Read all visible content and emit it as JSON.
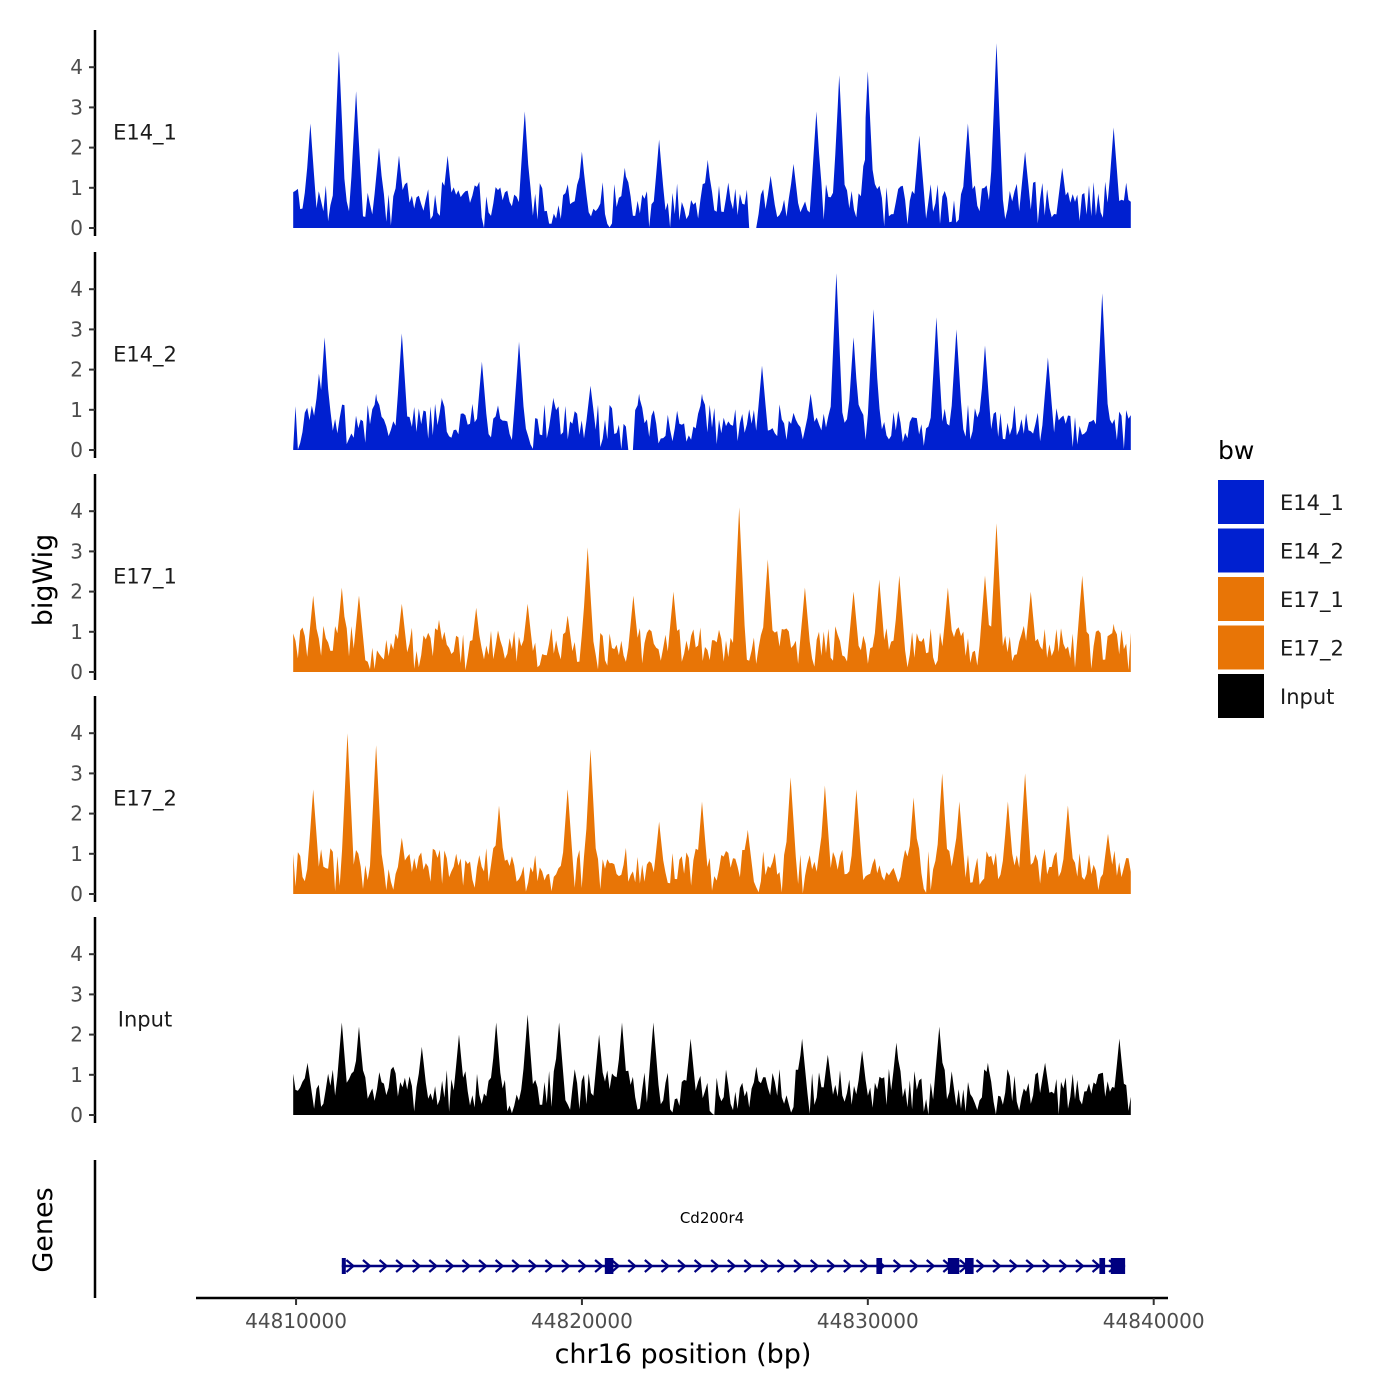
{
  "chart_data": {
    "type": "area",
    "title": "",
    "xlabel": "chr16 position (bp)",
    "ylabel": "bigWig",
    "genes_panel_label": "Genes",
    "xlim": [
      44806500,
      44840500
    ],
    "x_ticks": [
      44810000,
      44820000,
      44830000,
      44840000
    ],
    "x_tick_labels": [
      "44810000",
      "44820000",
      "44830000",
      "44840000"
    ],
    "ylim": [
      0,
      4.9
    ],
    "y_ticks": [
      0,
      1,
      2,
      3,
      4
    ],
    "y_tick_labels": [
      "0",
      "1",
      "2",
      "3",
      "4"
    ],
    "track_range": [
      44809900,
      44839200
    ],
    "legend": {
      "title": "bw",
      "entries": [
        {
          "label": "E14_1",
          "color": "#0020d0"
        },
        {
          "label": "E14_2",
          "color": "#0020d0"
        },
        {
          "label": "E17_1",
          "color": "#e87506"
        },
        {
          "label": "E17_2",
          "color": "#e87506"
        },
        {
          "label": "Input",
          "color": "#000000"
        }
      ]
    },
    "series": [
      {
        "name": "E14_1",
        "color": "#0020d0",
        "peaks": [
          [
            44810500,
            2.6
          ],
          [
            44811500,
            4.4
          ],
          [
            44812100,
            3.4
          ],
          [
            44812900,
            2.0
          ],
          [
            44813600,
            1.8
          ],
          [
            44815300,
            1.8
          ],
          [
            44818000,
            2.9
          ],
          [
            44820000,
            1.9
          ],
          [
            44821500,
            1.5
          ],
          [
            44822700,
            2.2
          ],
          [
            44824400,
            1.7
          ],
          [
            44826600,
            1.3
          ],
          [
            44827400,
            1.6
          ],
          [
            44828200,
            2.9
          ],
          [
            44829000,
            3.8
          ],
          [
            44829900,
            1.7
          ],
          [
            44830000,
            3.9
          ],
          [
            44831800,
            2.3
          ],
          [
            44833500,
            2.6
          ],
          [
            44834500,
            4.6
          ],
          [
            44835500,
            1.9
          ],
          [
            44836800,
            1.5
          ],
          [
            44838600,
            2.5
          ]
        ],
        "gaps": [
          [
            44825800,
            44826100
          ]
        ]
      },
      {
        "name": "E14_2",
        "color": "#0020d0",
        "peaks": [
          [
            44810800,
            1.9
          ],
          [
            44811000,
            2.8
          ],
          [
            44812800,
            1.4
          ],
          [
            44813700,
            2.9
          ],
          [
            44815100,
            1.3
          ],
          [
            44816500,
            2.2
          ],
          [
            44817800,
            2.7
          ],
          [
            44819000,
            1.3
          ],
          [
            44820300,
            1.6
          ],
          [
            44822000,
            1.4
          ],
          [
            44824200,
            1.4
          ],
          [
            44826300,
            2.1
          ],
          [
            44828000,
            1.4
          ],
          [
            44828900,
            4.4
          ],
          [
            44829500,
            2.8
          ],
          [
            44830200,
            3.5
          ],
          [
            44832400,
            3.3
          ],
          [
            44833100,
            3.0
          ],
          [
            44834100,
            2.6
          ],
          [
            44836300,
            2.3
          ],
          [
            44838200,
            3.9
          ]
        ],
        "gaps": [
          [
            44821600,
            44821800
          ]
        ]
      },
      {
        "name": "E17_1",
        "color": "#e87506",
        "peaks": [
          [
            44810600,
            1.9
          ],
          [
            44811600,
            2.1
          ],
          [
            44812200,
            1.9
          ],
          [
            44813700,
            1.7
          ],
          [
            44815000,
            1.3
          ],
          [
            44816300,
            1.6
          ],
          [
            44818100,
            1.7
          ],
          [
            44819500,
            1.4
          ],
          [
            44820200,
            3.1
          ],
          [
            44821800,
            1.9
          ],
          [
            44823200,
            2.0
          ],
          [
            44825500,
            4.1
          ],
          [
            44826500,
            2.8
          ],
          [
            44827800,
            2.1
          ],
          [
            44829500,
            2.0
          ],
          [
            44830400,
            2.3
          ],
          [
            44831100,
            2.4
          ],
          [
            44832800,
            2.1
          ],
          [
            44834100,
            2.4
          ],
          [
            44834500,
            3.7
          ],
          [
            44835700,
            2.0
          ],
          [
            44837500,
            2.4
          ],
          [
            44838600,
            1.2
          ]
        ],
        "gaps": []
      },
      {
        "name": "E17_2",
        "color": "#e87506",
        "peaks": [
          [
            44810600,
            2.6
          ],
          [
            44811800,
            4.0
          ],
          [
            44812800,
            3.7
          ],
          [
            44813700,
            1.4
          ],
          [
            44815600,
            1.0
          ],
          [
            44817100,
            2.2
          ],
          [
            44819500,
            2.6
          ],
          [
            44820300,
            3.6
          ],
          [
            44822700,
            1.8
          ],
          [
            44824200,
            2.3
          ],
          [
            44825800,
            1.6
          ],
          [
            44827300,
            2.9
          ],
          [
            44828500,
            2.7
          ],
          [
            44829600,
            2.6
          ],
          [
            44831600,
            2.4
          ],
          [
            44832600,
            3.0
          ],
          [
            44833200,
            2.3
          ],
          [
            44834900,
            2.3
          ],
          [
            44835500,
            3.0
          ],
          [
            44837000,
            2.2
          ],
          [
            44838400,
            1.5
          ]
        ],
        "gaps": []
      },
      {
        "name": "Input",
        "color": "#000000",
        "peaks": [
          [
            44810400,
            1.3
          ],
          [
            44811600,
            2.3
          ],
          [
            44812200,
            2.2
          ],
          [
            44813400,
            1.2
          ],
          [
            44814400,
            1.7
          ],
          [
            44815700,
            2.0
          ],
          [
            44817000,
            2.3
          ],
          [
            44818100,
            2.5
          ],
          [
            44819200,
            2.3
          ],
          [
            44820600,
            2.0
          ],
          [
            44821400,
            2.3
          ],
          [
            44822500,
            2.3
          ],
          [
            44823800,
            1.9
          ],
          [
            44826100,
            1.2
          ],
          [
            44827700,
            1.9
          ],
          [
            44828600,
            1.5
          ],
          [
            44829800,
            1.6
          ],
          [
            44831000,
            1.8
          ],
          [
            44832500,
            2.2
          ],
          [
            44834200,
            1.3
          ],
          [
            44836200,
            1.3
          ],
          [
            44838800,
            1.9
          ]
        ],
        "gaps": [
          [
            44824600,
            44824700
          ]
        ]
      }
    ],
    "gene": {
      "name": "Cd200r4",
      "color": "#000080",
      "start": 44811600,
      "end": 44839000,
      "strand": "+",
      "exons": [
        [
          44811600,
          44811700
        ],
        [
          44820800,
          44821100
        ],
        [
          44830300,
          44830500
        ],
        [
          44832800,
          44833200
        ],
        [
          44833400,
          44833700
        ],
        [
          44838100,
          44838300
        ],
        [
          44838500,
          44839000
        ]
      ]
    }
  }
}
